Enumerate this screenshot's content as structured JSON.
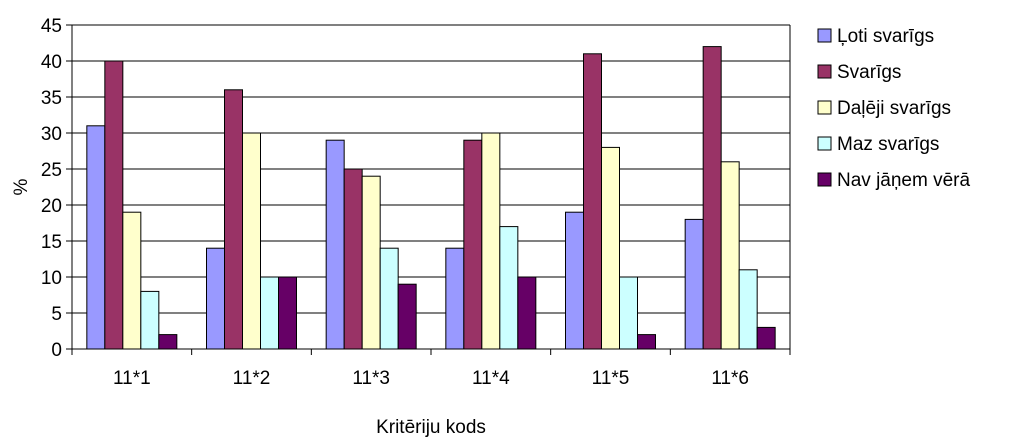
{
  "chart_data": {
    "type": "bar",
    "title": "",
    "xlabel": "Kritēriju kods",
    "ylabel": "%",
    "ylim": [
      0,
      45
    ],
    "ytick_step": 5,
    "grid": "horizontal",
    "legend_position": "right",
    "categories": [
      "11*1",
      "11*2",
      "11*3",
      "11*4",
      "11*5",
      "11*6"
    ],
    "series": [
      {
        "name": "Ļoti svarīgs",
        "color": "#9999ff",
        "values": [
          31,
          14,
          29,
          14,
          19,
          18
        ]
      },
      {
        "name": "Svarīgs",
        "color": "#993366",
        "values": [
          40,
          36,
          25,
          29,
          41,
          42
        ]
      },
      {
        "name": "Daļēji svarīgs",
        "color": "#ffffcc",
        "values": [
          19,
          30,
          24,
          30,
          28,
          26
        ]
      },
      {
        "name": "Maz svarīgs",
        "color": "#ccffff",
        "values": [
          8,
          10,
          14,
          17,
          10,
          11
        ]
      },
      {
        "name": "Nav jāņem vērā",
        "color": "#660066",
        "values": [
          2,
          10,
          9,
          10,
          2,
          3
        ]
      }
    ]
  }
}
